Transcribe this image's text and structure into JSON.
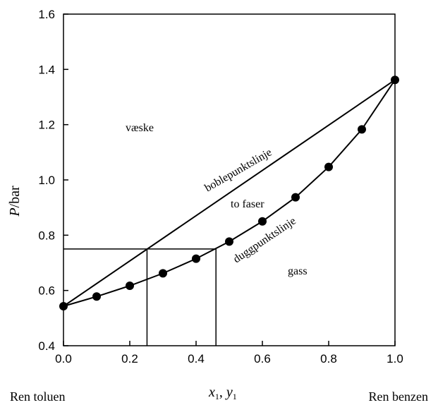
{
  "chart_data": {
    "type": "line",
    "xlabel": "x1, y1",
    "xlabel_parts": {
      "x": "x",
      "x_sub": "1",
      "sep": ", ",
      "y": "y",
      "y_sub": "1"
    },
    "ylabel": "P/bar",
    "ylabel_parts": {
      "var": "P",
      "unit": "/bar"
    },
    "xlim": [
      0.0,
      1.0
    ],
    "ylim": [
      0.4,
      1.6
    ],
    "x_ticks": [
      "0.0",
      "0.2",
      "0.4",
      "0.6",
      "0.8",
      "1.0"
    ],
    "y_ticks": [
      "0.4",
      "0.6",
      "0.8",
      "1.0",
      "1.2",
      "1.4",
      "1.6"
    ],
    "grid": false,
    "series": [
      {
        "name": "boblepunktslinje",
        "marker": false,
        "x": [
          0.0,
          1.0
        ],
        "y": [
          0.543,
          1.362
        ]
      },
      {
        "name": "duggpunktslinje",
        "marker": true,
        "x": [
          0.0,
          0.1,
          0.2,
          0.3,
          0.4,
          0.5,
          0.6,
          0.7,
          0.8,
          0.9,
          1.0
        ],
        "y": [
          0.543,
          0.578,
          0.617,
          0.662,
          0.715,
          0.777,
          0.85,
          0.937,
          1.047,
          1.183,
          1.362
        ]
      }
    ],
    "guide_lines": {
      "pressure": 0.75,
      "x_liquid": 0.252,
      "x_vapor": 0.46
    },
    "region_labels": [
      "væske",
      "to faser",
      "gass"
    ],
    "bottom_labels": {
      "left": "Ren toluen",
      "right": "Ren benzen"
    }
  }
}
